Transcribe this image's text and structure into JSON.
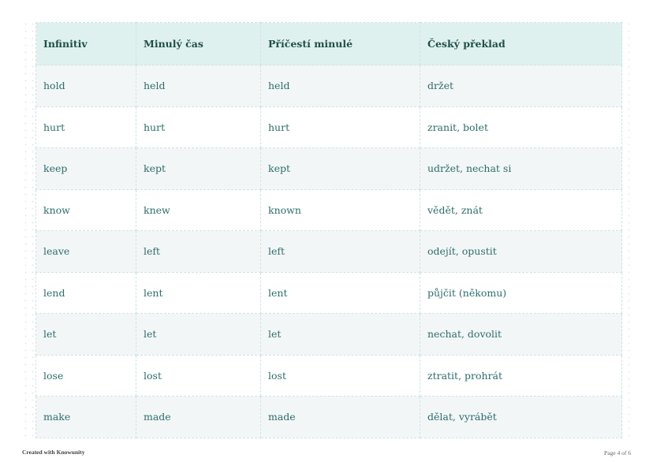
{
  "table": {
    "headers": [
      "Infinitiv",
      "Minulý čas",
      "Příčestí minulé",
      "Český překlad"
    ],
    "rows": [
      [
        "hold",
        "held",
        "held",
        "držet"
      ],
      [
        "hurt",
        "hurt",
        "hurt",
        "zranit, bolet"
      ],
      [
        "keep",
        "kept",
        "kept",
        "udržet, nechat si"
      ],
      [
        "know",
        "knew",
        "known",
        "vědět, znát"
      ],
      [
        "leave",
        "left",
        "left",
        "odejít, opustit"
      ],
      [
        "lend",
        "lent",
        "lent",
        "půjčit (někomu)"
      ],
      [
        "let",
        "let",
        "let",
        "nechat, dovolit"
      ],
      [
        "lose",
        "lost",
        "lost",
        "ztratit, prohrát"
      ],
      [
        "make",
        "made",
        "made",
        "dělat, vyrábět"
      ]
    ]
  },
  "footer": {
    "created": "Created with Knowunity",
    "page": "Page 4 of 6"
  },
  "colors": {
    "header_bg": "#dff1ef",
    "header_text": "#1f4f4a",
    "body_text": "#2b6e6b",
    "stripe": "#f3f6f7"
  }
}
